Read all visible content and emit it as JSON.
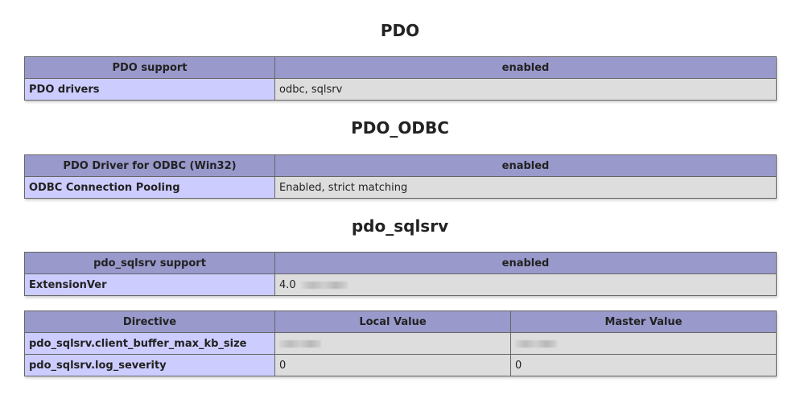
{
  "sections": [
    {
      "title": "PDO",
      "table": {
        "header": [
          "PDO support",
          "enabled"
        ],
        "rows": [
          [
            "PDO drivers",
            "odbc, sqlsrv"
          ]
        ]
      }
    },
    {
      "title": "PDO_ODBC",
      "table": {
        "header": [
          "PDO Driver for ODBC (Win32)",
          "enabled"
        ],
        "rows": [
          [
            "ODBC Connection Pooling",
            "Enabled, strict matching"
          ]
        ]
      }
    },
    {
      "title": "pdo_sqlsrv",
      "table": {
        "header": [
          "pdo_sqlsrv support",
          "enabled"
        ],
        "rows": [
          [
            "ExtensionVer",
            "4.0"
          ]
        ]
      }
    }
  ],
  "directives": {
    "header": [
      "Directive",
      "Local Value",
      "Master Value"
    ],
    "rows": [
      [
        "pdo_sqlsrv.client_buffer_max_kb_size",
        "",
        ""
      ],
      [
        "pdo_sqlsrv.log_severity",
        "0",
        "0"
      ]
    ]
  },
  "colors": {
    "header_bg": "#9999cc",
    "label_bg": "#ccccff",
    "value_bg": "#dddddd",
    "border": "#666666"
  }
}
